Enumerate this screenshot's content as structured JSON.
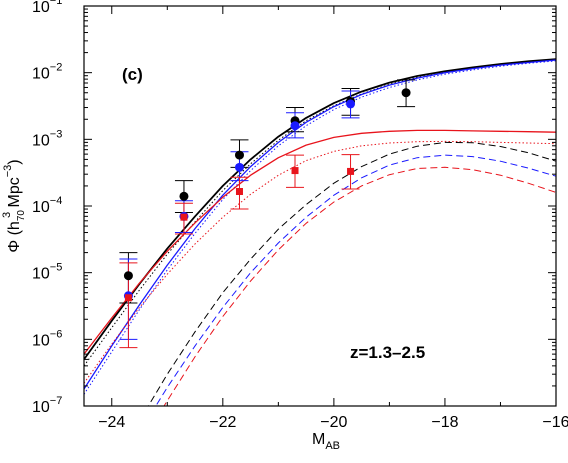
{
  "chart_data": {
    "type": "scatter",
    "panel_label": "(c)",
    "annotation": "z=1.3–2.5",
    "xlabel": "M",
    "xlabel_sub": "AB",
    "ylabel_parts": [
      "Φ (h",
      "70",
      "3",
      " Mpc",
      "−3",
      ")"
    ],
    "x_axis": {
      "min": -24.5,
      "max": -16,
      "major_ticks": [
        -24,
        -22,
        -20,
        -18,
        -16
      ],
      "major_tick_labels": [
        "−24",
        "−22",
        "−20",
        "−18",
        "−16"
      ],
      "minor_ticks": [
        -23,
        -21,
        -19,
        -17
      ]
    },
    "y_axis": {
      "scale": "log",
      "min_exp": -7,
      "max_exp": -1,
      "tick_exponents": [
        -7,
        -6,
        -5,
        -4,
        -3,
        -2,
        -1
      ],
      "tick_labels": [
        {
          "base": "10",
          "exp": "−7"
        },
        {
          "base": "10",
          "exp": "−6"
        },
        {
          "base": "10",
          "exp": "−5"
        },
        {
          "base": "10",
          "exp": "−4"
        },
        {
          "base": "10",
          "exp": "−3"
        },
        {
          "base": "10",
          "exp": "−2"
        },
        {
          "base": "10",
          "exp": "−1"
        }
      ]
    },
    "colors": {
      "black": "#000000",
      "blue": "#1a1aff",
      "red": "#e8141c"
    },
    "curves": [
      {
        "color": "#000000",
        "style": "solid",
        "width": 1.8,
        "points": [
          [
            -24.5,
            5e-07
          ],
          [
            -24,
            1.9e-06
          ],
          [
            -23.5,
            6.8e-06
          ],
          [
            -23,
            2.3e-05
          ],
          [
            -22.5,
            7e-05
          ],
          [
            -22,
            0.0002
          ],
          [
            -21.5,
            0.0005
          ],
          [
            -21,
            0.0011
          ],
          [
            -20.5,
            0.0021
          ],
          [
            -20,
            0.0035
          ],
          [
            -19.5,
            0.0052
          ],
          [
            -19,
            0.0071
          ],
          [
            -18.5,
            0.0089
          ],
          [
            -18,
            0.0105
          ],
          [
            -17.5,
            0.012
          ],
          [
            -17,
            0.0135
          ],
          [
            -16.5,
            0.0148
          ],
          [
            -16,
            0.016
          ]
        ]
      },
      {
        "color": "#000000",
        "style": "dotted",
        "width": 1.0,
        "points": [
          [
            -24.5,
            4e-07
          ],
          [
            -24,
            1.5e-06
          ],
          [
            -23.5,
            5.5e-06
          ],
          [
            -23,
            1.9e-05
          ],
          [
            -22.5,
            5.8e-05
          ],
          [
            -22,
            0.00017
          ],
          [
            -21.5,
            0.00043
          ],
          [
            -21,
            0.00097
          ],
          [
            -20.5,
            0.0019
          ],
          [
            -20,
            0.0032
          ],
          [
            -19.5,
            0.0048
          ],
          [
            -19,
            0.0067
          ],
          [
            -18.5,
            0.0085
          ],
          [
            -18,
            0.01
          ],
          [
            -17.5,
            0.0116
          ],
          [
            -17,
            0.013
          ],
          [
            -16.5,
            0.0143
          ],
          [
            -16,
            0.0155
          ]
        ]
      },
      {
        "color": "#1a1aff",
        "style": "solid",
        "width": 1.3,
        "points": [
          [
            -24.5,
            1.8e-07
          ],
          [
            -24,
            8e-07
          ],
          [
            -23.5,
            3.3e-06
          ],
          [
            -23,
            1.3e-05
          ],
          [
            -22.5,
            4.6e-05
          ],
          [
            -22,
            0.000145
          ],
          [
            -21.5,
            0.00039
          ],
          [
            -21,
            0.0009
          ],
          [
            -20.5,
            0.0018
          ],
          [
            -20,
            0.0031
          ],
          [
            -19.5,
            0.0047
          ],
          [
            -19,
            0.0065
          ],
          [
            -18.5,
            0.0083
          ],
          [
            -18,
            0.01
          ],
          [
            -17.5,
            0.0115
          ],
          [
            -17,
            0.013
          ],
          [
            -16.5,
            0.0142
          ],
          [
            -16,
            0.0155
          ]
        ]
      },
      {
        "color": "#1a1aff",
        "style": "dotted",
        "width": 1.0,
        "points": [
          [
            -24.5,
            1.5e-07
          ],
          [
            -24,
            6.5e-07
          ],
          [
            -23.5,
            2.8e-06
          ],
          [
            -23,
            1.1e-05
          ],
          [
            -22.5,
            3.9e-05
          ],
          [
            -22,
            0.000125
          ],
          [
            -21.5,
            0.00034
          ],
          [
            -21,
            0.0008
          ],
          [
            -20.5,
            0.0016
          ],
          [
            -20,
            0.0028
          ],
          [
            -19.5,
            0.0043
          ],
          [
            -19,
            0.006
          ],
          [
            -18.5,
            0.0078
          ],
          [
            -18,
            0.0095
          ],
          [
            -17.5,
            0.011
          ],
          [
            -17,
            0.0125
          ],
          [
            -16.5,
            0.0138
          ],
          [
            -16,
            0.015
          ]
        ]
      },
      {
        "color": "#e8141c",
        "style": "solid",
        "width": 1.3,
        "points": [
          [
            -24.5,
            6e-07
          ],
          [
            -24,
            2.1e-06
          ],
          [
            -23.5,
            7e-06
          ],
          [
            -23,
            2.1e-05
          ],
          [
            -22.5,
            5.6e-05
          ],
          [
            -22,
            0.000135
          ],
          [
            -21.5,
            0.00029
          ],
          [
            -21,
            0.00053
          ],
          [
            -20.5,
            0.00082
          ],
          [
            -20,
            0.00107
          ],
          [
            -19.5,
            0.00123
          ],
          [
            -19,
            0.00132
          ],
          [
            -18.5,
            0.00136
          ],
          [
            -18,
            0.00136
          ],
          [
            -17.5,
            0.00134
          ],
          [
            -17,
            0.00132
          ],
          [
            -16.5,
            0.0013
          ],
          [
            -16,
            0.00128
          ]
        ]
      },
      {
        "color": "#e8141c",
        "style": "dotted",
        "width": 1.0,
        "points": [
          [
            -24.5,
            2.2e-07
          ],
          [
            -24,
            8.5e-07
          ],
          [
            -23.5,
            3e-06
          ],
          [
            -23,
            9.5e-06
          ],
          [
            -22.5,
            2.7e-05
          ],
          [
            -22,
            6.8e-05
          ],
          [
            -21.5,
            0.00015
          ],
          [
            -21,
            0.00029
          ],
          [
            -20.5,
            0.00048
          ],
          [
            -20,
            0.00066
          ],
          [
            -19.5,
            0.0008
          ],
          [
            -19,
            0.00088
          ],
          [
            -18.5,
            0.00092
          ],
          [
            -18,
            0.00093
          ],
          [
            -17.5,
            0.00092
          ],
          [
            -17,
            0.0009
          ],
          [
            -16.5,
            0.00088
          ],
          [
            -16,
            0.00086
          ]
        ]
      },
      {
        "color": "#000000",
        "style": "dashed",
        "width": 1.0,
        "points": [
          [
            -23.5,
            6e-08
          ],
          [
            -23,
            3e-07
          ],
          [
            -22.5,
            1.3e-06
          ],
          [
            -22,
            5e-06
          ],
          [
            -21.5,
            1.6e-05
          ],
          [
            -21,
            4.5e-05
          ],
          [
            -20.5,
            0.000105
          ],
          [
            -20,
            0.00022
          ],
          [
            -19.5,
            0.00039
          ],
          [
            -19,
            0.0006
          ],
          [
            -18.5,
            0.00079
          ],
          [
            -18,
            0.0009
          ],
          [
            -17.5,
            0.00089
          ],
          [
            -17,
            0.00078
          ],
          [
            -16.5,
            0.00063
          ],
          [
            -16,
            0.00047
          ]
        ]
      },
      {
        "color": "#1a1aff",
        "style": "dashed",
        "width": 1.0,
        "points": [
          [
            -23.5,
            4e-08
          ],
          [
            -23,
            1.9e-07
          ],
          [
            -22.5,
            8e-07
          ],
          [
            -22,
            3e-06
          ],
          [
            -21.5,
            1e-05
          ],
          [
            -21,
            2.8e-05
          ],
          [
            -20.5,
            6.8e-05
          ],
          [
            -20,
            0.000145
          ],
          [
            -19.5,
            0.000265
          ],
          [
            -19,
            0.00041
          ],
          [
            -18.5,
            0.00053
          ],
          [
            -18,
            0.00058
          ],
          [
            -17.5,
            0.00055
          ],
          [
            -17,
            0.00047
          ],
          [
            -16.5,
            0.00037
          ],
          [
            -16,
            0.00028
          ]
        ]
      },
      {
        "color": "#e8141c",
        "style": "dashed",
        "width": 1.0,
        "points": [
          [
            -23.5,
            2.5e-08
          ],
          [
            -23,
            1.2e-07
          ],
          [
            -22.5,
            5.5e-07
          ],
          [
            -22,
            2.2e-06
          ],
          [
            -21.5,
            7.5e-06
          ],
          [
            -21,
            2.2e-05
          ],
          [
            -20.5,
            5.5e-05
          ],
          [
            -20,
            0.000115
          ],
          [
            -19.5,
            0.0002
          ],
          [
            -19,
            0.000295
          ],
          [
            -18.5,
            0.000365
          ],
          [
            -18,
            0.00038
          ],
          [
            -17.5,
            0.00035
          ],
          [
            -17,
            0.00029
          ],
          [
            -16.5,
            0.00022
          ],
          [
            -16,
            0.00016
          ]
        ]
      }
    ],
    "points": [
      {
        "series": "black-circle",
        "color": "#000000",
        "marker": "circle",
        "data": [
          {
            "x": -23.7,
            "y": 9e-06,
            "lo": 3.5e-06,
            "hi": 2e-05
          },
          {
            "x": -22.7,
            "y": 0.00014,
            "lo": 8e-05,
            "hi": 0.00024
          },
          {
            "x": -21.7,
            "y": 0.00058,
            "lo": 0.00038,
            "hi": 0.00098
          },
          {
            "x": -20.7,
            "y": 0.0019,
            "lo": 0.0013,
            "hi": 0.003
          },
          {
            "x": -19.7,
            "y": 0.0037,
            "lo": 0.0023,
            "hi": 0.0058
          },
          {
            "x": -18.7,
            "y": 0.005,
            "lo": 0.0031,
            "hi": 0.0078
          }
        ]
      },
      {
        "series": "blue-circle",
        "color": "#1a1aff",
        "marker": "circle",
        "data": [
          {
            "x": -23.7,
            "y": 4.5e-06,
            "lo": 1e-06,
            "hi": 1.6e-05
          },
          {
            "x": -22.7,
            "y": 7e-05,
            "lo": 4e-05,
            "hi": 0.00012
          },
          {
            "x": -21.7,
            "y": 0.00038,
            "lo": 0.00024,
            "hi": 0.00065
          },
          {
            "x": -20.7,
            "y": 0.0016,
            "lo": 0.00105,
            "hi": 0.0025
          },
          {
            "x": -19.7,
            "y": 0.0034,
            "lo": 0.0021,
            "hi": 0.0053
          }
        ]
      },
      {
        "series": "red-square",
        "color": "#e8141c",
        "marker": "square",
        "data": [
          {
            "x": -23.7,
            "y": 4.2e-06,
            "lo": 7.5e-07,
            "hi": 1.4e-05
          },
          {
            "x": -22.7,
            "y": 6.8e-05,
            "lo": 3.8e-05,
            "hi": 0.00011
          },
          {
            "x": -21.7,
            "y": 0.000165,
            "lo": 9e-05,
            "hi": 0.00027
          },
          {
            "x": -20.7,
            "y": 0.00034,
            "lo": 0.00019,
            "hi": 0.00058
          },
          {
            "x": -19.7,
            "y": 0.00033,
            "lo": 0.00018,
            "hi": 0.00059
          }
        ]
      }
    ]
  }
}
